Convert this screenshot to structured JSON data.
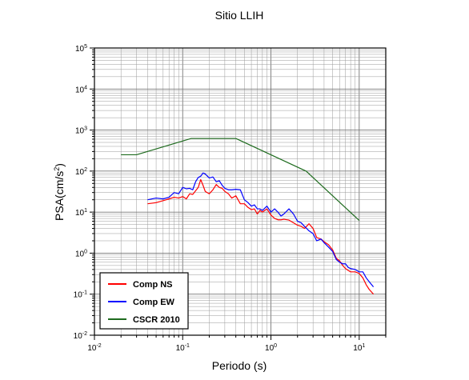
{
  "chart_data": {
    "type": "line",
    "title": "Sitio LLIH",
    "xlabel": "Periodo (s)",
    "ylabel": "PSA(cm/s²)",
    "x_scale": "log",
    "y_scale": "log",
    "xlim": [
      0.01,
      20
    ],
    "ylim": [
      0.01,
      100000
    ],
    "grid": true,
    "legend_position": "bottom-left",
    "x_ticks": [
      {
        "value": 0.01,
        "base": "10",
        "exp": "-2"
      },
      {
        "value": 0.1,
        "base": "10",
        "exp": "-1"
      },
      {
        "value": 1,
        "base": "10",
        "exp": "0"
      },
      {
        "value": 10,
        "base": "10",
        "exp": "1"
      }
    ],
    "y_ticks": [
      {
        "value": 0.01,
        "base": "10",
        "exp": "-2"
      },
      {
        "value": 0.1,
        "base": "10",
        "exp": "-1"
      },
      {
        "value": 1,
        "base": "10",
        "exp": "0"
      },
      {
        "value": 10,
        "base": "10",
        "exp": "1"
      },
      {
        "value": 100,
        "base": "10",
        "exp": "2"
      },
      {
        "value": 1000,
        "base": "10",
        "exp": "3"
      },
      {
        "value": 10000,
        "base": "10",
        "exp": "4"
      },
      {
        "value": 100000,
        "base": "10",
        "exp": "5"
      }
    ],
    "series": [
      {
        "name": "Comp NS",
        "color": "#ff0000",
        "points": [
          [
            0.04,
            16
          ],
          [
            0.05,
            17
          ],
          [
            0.06,
            19
          ],
          [
            0.07,
            21
          ],
          [
            0.08,
            23
          ],
          [
            0.09,
            22
          ],
          [
            0.1,
            24
          ],
          [
            0.11,
            21
          ],
          [
            0.12,
            28
          ],
          [
            0.13,
            27
          ],
          [
            0.14,
            33
          ],
          [
            0.15,
            40
          ],
          [
            0.16,
            62
          ],
          [
            0.17,
            45
          ],
          [
            0.18,
            32
          ],
          [
            0.2,
            28
          ],
          [
            0.22,
            35
          ],
          [
            0.24,
            47
          ],
          [
            0.26,
            40
          ],
          [
            0.28,
            38
          ],
          [
            0.3,
            32
          ],
          [
            0.33,
            28
          ],
          [
            0.36,
            22
          ],
          [
            0.4,
            25
          ],
          [
            0.45,
            16
          ],
          [
            0.5,
            16
          ],
          [
            0.55,
            13
          ],
          [
            0.6,
            11.5
          ],
          [
            0.65,
            12
          ],
          [
            0.7,
            9
          ],
          [
            0.75,
            11
          ],
          [
            0.8,
            10
          ],
          [
            0.9,
            12
          ],
          [
            1.0,
            8.5
          ],
          [
            1.1,
            7
          ],
          [
            1.2,
            6.5
          ],
          [
            1.3,
            6.5
          ],
          [
            1.4,
            6.7
          ],
          [
            1.6,
            6.4
          ],
          [
            1.8,
            5.5
          ],
          [
            2.0,
            4.8
          ],
          [
            2.2,
            4.5
          ],
          [
            2.4,
            4
          ],
          [
            2.7,
            5.2
          ],
          [
            3.0,
            4
          ],
          [
            3.3,
            2.4
          ],
          [
            3.7,
            2.2
          ],
          [
            4.0,
            1.9
          ],
          [
            4.5,
            1.6
          ],
          [
            5.0,
            1.2
          ],
          [
            5.5,
            0.75
          ],
          [
            6.0,
            0.65
          ],
          [
            6.5,
            0.5
          ],
          [
            7.0,
            0.42
          ],
          [
            7.5,
            0.38
          ],
          [
            8.0,
            0.35
          ],
          [
            9.0,
            0.35
          ],
          [
            10.0,
            0.32
          ],
          [
            11.0,
            0.25
          ],
          [
            12.0,
            0.17
          ],
          [
            13.0,
            0.13
          ],
          [
            14.5,
            0.1
          ]
        ]
      },
      {
        "name": "Comp EW",
        "color": "#0000ff",
        "points": [
          [
            0.04,
            20
          ],
          [
            0.05,
            22
          ],
          [
            0.06,
            21
          ],
          [
            0.07,
            23
          ],
          [
            0.08,
            30
          ],
          [
            0.09,
            28
          ],
          [
            0.1,
            40
          ],
          [
            0.11,
            37
          ],
          [
            0.12,
            38
          ],
          [
            0.13,
            35
          ],
          [
            0.14,
            55
          ],
          [
            0.15,
            70
          ],
          [
            0.16,
            75
          ],
          [
            0.17,
            90
          ],
          [
            0.18,
            85
          ],
          [
            0.2,
            68
          ],
          [
            0.22,
            72
          ],
          [
            0.24,
            55
          ],
          [
            0.26,
            58
          ],
          [
            0.28,
            45
          ],
          [
            0.3,
            38
          ],
          [
            0.33,
            35
          ],
          [
            0.36,
            35
          ],
          [
            0.4,
            36
          ],
          [
            0.45,
            35
          ],
          [
            0.5,
            20
          ],
          [
            0.55,
            17
          ],
          [
            0.6,
            14
          ],
          [
            0.65,
            15
          ],
          [
            0.7,
            12
          ],
          [
            0.75,
            12
          ],
          [
            0.8,
            11
          ],
          [
            0.9,
            14
          ],
          [
            1.0,
            10
          ],
          [
            1.1,
            12
          ],
          [
            1.2,
            10
          ],
          [
            1.3,
            8
          ],
          [
            1.4,
            9
          ],
          [
            1.6,
            12
          ],
          [
            1.8,
            9
          ],
          [
            2.0,
            6
          ],
          [
            2.2,
            5.5
          ],
          [
            2.4,
            4.5
          ],
          [
            2.7,
            3.5
          ],
          [
            3.0,
            3
          ],
          [
            3.3,
            2
          ],
          [
            3.7,
            2.2
          ],
          [
            4.0,
            1.8
          ],
          [
            4.5,
            1.4
          ],
          [
            5.0,
            1.1
          ],
          [
            5.5,
            0.7
          ],
          [
            6.0,
            0.6
          ],
          [
            6.5,
            0.55
          ],
          [
            7.0,
            0.55
          ],
          [
            7.5,
            0.45
          ],
          [
            8.0,
            0.42
          ],
          [
            9.0,
            0.4
          ],
          [
            10.0,
            0.35
          ],
          [
            11.0,
            0.35
          ],
          [
            12.0,
            0.25
          ],
          [
            13.0,
            0.2
          ],
          [
            14.5,
            0.15
          ]
        ]
      },
      {
        "name": "CSCR 2010",
        "color": "#1e6b1e",
        "points": [
          [
            0.02,
            250
          ],
          [
            0.03,
            250
          ],
          [
            0.125,
            625
          ],
          [
            0.4,
            625
          ],
          [
            2.5,
            100
          ],
          [
            10,
            6.25
          ]
        ]
      }
    ]
  }
}
